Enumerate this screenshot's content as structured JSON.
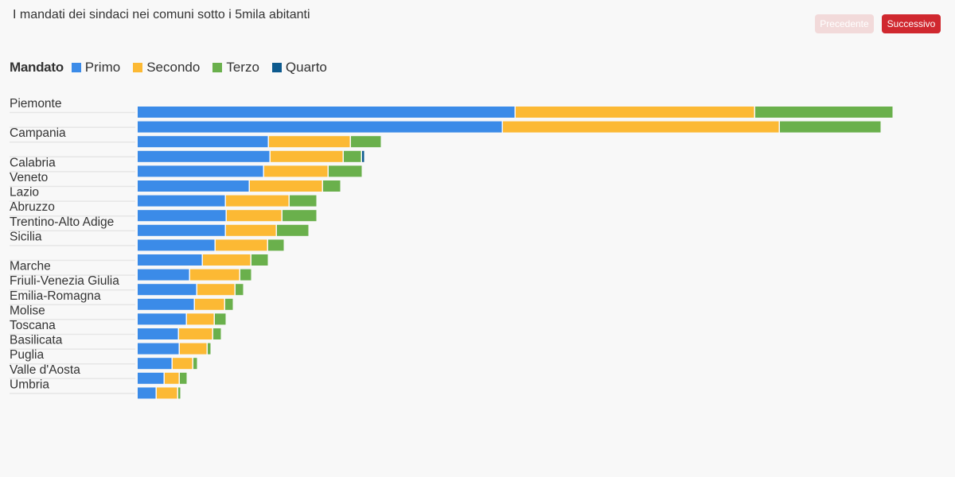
{
  "header": {
    "title": "I mandati dei sindaci nei comuni sotto i 5mila abitanti",
    "prev_label": "Precedente",
    "next_label": "Successivo"
  },
  "chart_data": {
    "type": "bar",
    "orientation": "horizontal",
    "stacked": true,
    "legend_title": "Mandato",
    "legend_position": "top-left",
    "colors": {
      "Primo": "#3b8be8",
      "Secondo": "#fcb934",
      "Terzo": "#6ab04c",
      "Quarto": "#0d5a8e"
    },
    "grid": false,
    "xlim": [
      0,
      960
    ],
    "categories": [
      "Piemonte",
      "",
      "Campania",
      "",
      "Calabria",
      "Veneto",
      "Lazio",
      "Abruzzo",
      "Trentino-Alto Adige",
      "Sicilia",
      "",
      "Marche",
      "Friuli-Venezia Giulia",
      "Emilia-Romagna",
      "Molise",
      "Toscana",
      "Basilicata",
      "Puglia",
      "Valle d'Aosta",
      "Umbria"
    ],
    "series": [
      {
        "name": "Primo",
        "values": [
          475,
          459,
          165,
          167,
          159,
          141,
          111,
          112,
          111,
          98,
          82,
          66,
          75,
          72,
          62,
          52,
          53,
          44,
          34,
          24
        ]
      },
      {
        "name": "Secondo",
        "values": [
          301,
          348,
          103,
          92,
          81,
          92,
          80,
          70,
          64,
          66,
          61,
          63,
          48,
          38,
          35,
          43,
          35,
          26,
          19,
          27
        ]
      },
      {
        "name": "Terzo",
        "values": [
          174,
          128,
          39,
          23,
          43,
          23,
          35,
          44,
          41,
          21,
          22,
          15,
          11,
          11,
          15,
          11,
          5,
          6,
          10,
          4
        ]
      },
      {
        "name": "Quarto",
        "values": [
          0,
          0,
          0,
          4,
          0,
          0,
          0,
          0,
          0,
          0,
          0,
          0,
          0,
          0,
          0,
          0,
          0,
          0,
          0,
          0
        ]
      }
    ]
  }
}
